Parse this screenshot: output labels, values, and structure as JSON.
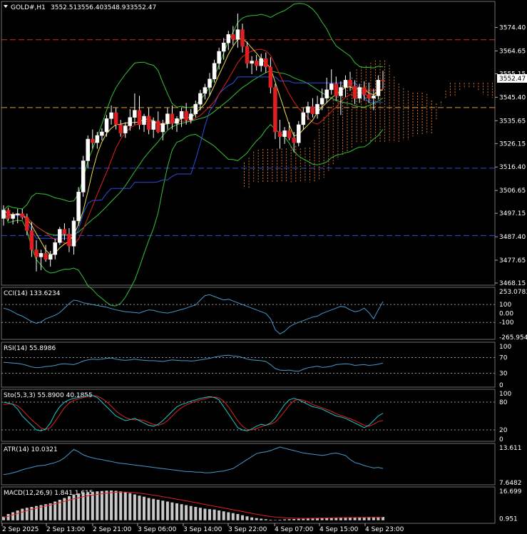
{
  "chart_data": {
    "type": "candlestick",
    "header": {
      "symbol": "GOLD#,H1",
      "open": "3552.51",
      "high": "3556.40",
      "low": "3548.93",
      "close": "3552.47"
    },
    "price_axis_ticks": [
      "3574.40",
      "3564.65",
      "3555.15",
      "3545.40",
      "3535.65",
      "3526.15",
      "3516.40",
      "3506.65",
      "3497.15",
      "3487.40",
      "3477.65",
      "3468.15"
    ],
    "price_range": [
      3468.15,
      3580.2
    ],
    "current_price_label": "3552.47",
    "x_tick_labels": [
      "2 Sep 2025",
      "2 Sep 13:00",
      "2 Sep 21:00",
      "3 Sep 06:00",
      "3 Sep 14:00",
      "3 Sep 22:00",
      "4 Sep 07:00",
      "4 Sep 15:00",
      "4 Sep 23:00"
    ],
    "horizontal_levels": [
      {
        "price": 3569.3,
        "color": "#dd2a2a"
      },
      {
        "price": 3541.1,
        "color": "#e0a030"
      },
      {
        "price": 3515.9,
        "color": "#2a4fe0"
      },
      {
        "price": 3487.9,
        "color": "#2a4fe0"
      }
    ],
    "candles": [
      [
        3495.0,
        3500.5,
        3492.0,
        3498.5
      ],
      [
        3498.5,
        3499.5,
        3494.0,
        3495.0
      ],
      [
        3495.0,
        3497.5,
        3492.5,
        3496.5
      ],
      [
        3496.5,
        3499.0,
        3493.0,
        3497.0
      ],
      [
        3497.0,
        3499.0,
        3494.5,
        3495.5
      ],
      [
        3495.5,
        3497.0,
        3488.0,
        3490.0
      ],
      [
        3490.0,
        3493.5,
        3479.0,
        3482.0
      ],
      [
        3482.0,
        3486.0,
        3473.0,
        3479.0
      ],
      [
        3479.0,
        3482.0,
        3473.5,
        3480.5
      ],
      [
        3480.5,
        3484.0,
        3477.0,
        3478.0
      ],
      [
        3478.0,
        3481.5,
        3475.0,
        3480.0
      ],
      [
        3480.0,
        3486.5,
        3478.0,
        3485.0
      ],
      [
        3485.0,
        3491.5,
        3484.0,
        3490.5
      ],
      [
        3490.5,
        3493.0,
        3486.0,
        3488.5
      ],
      [
        3488.5,
        3491.0,
        3481.0,
        3483.5
      ],
      [
        3483.5,
        3495.5,
        3480.0,
        3494.0
      ],
      [
        3494.0,
        3508.0,
        3492.0,
        3506.0
      ],
      [
        3506.0,
        3521.0,
        3504.0,
        3519.0
      ],
      [
        3519.0,
        3529.5,
        3516.0,
        3528.0
      ],
      [
        3528.0,
        3532.0,
        3524.0,
        3526.5
      ],
      [
        3526.5,
        3531.0,
        3524.0,
        3529.5
      ],
      [
        3529.5,
        3532.5,
        3527.5,
        3531.0
      ],
      [
        3531.0,
        3538.0,
        3529.0,
        3536.5
      ],
      [
        3536.5,
        3542.0,
        3534.0,
        3539.0
      ],
      [
        3539.0,
        3541.0,
        3532.0,
        3534.0
      ],
      [
        3534.0,
        3536.0,
        3529.0,
        3530.5
      ],
      [
        3530.5,
        3535.0,
        3528.5,
        3533.5
      ],
      [
        3533.5,
        3540.5,
        3531.5,
        3537.0
      ],
      [
        3537.0,
        3547.0,
        3534.0,
        3540.0
      ],
      [
        3540.0,
        3546.0,
        3532.0,
        3534.0
      ],
      [
        3534.0,
        3538.5,
        3531.0,
        3537.5
      ],
      [
        3537.5,
        3541.0,
        3530.0,
        3532.0
      ],
      [
        3532.0,
        3537.0,
        3528.5,
        3535.5
      ],
      [
        3535.5,
        3539.5,
        3530.5,
        3531.0
      ],
      [
        3531.0,
        3536.0,
        3527.5,
        3534.5
      ],
      [
        3534.5,
        3541.0,
        3532.0,
        3538.5
      ],
      [
        3538.5,
        3542.0,
        3532.0,
        3534.5
      ],
      [
        3534.5,
        3537.5,
        3531.0,
        3536.5
      ],
      [
        3536.5,
        3541.0,
        3533.0,
        3539.5
      ],
      [
        3539.5,
        3543.0,
        3534.0,
        3536.0
      ],
      [
        3536.0,
        3540.5,
        3534.5,
        3538.5
      ],
      [
        3538.5,
        3544.0,
        3537.0,
        3542.5
      ],
      [
        3542.5,
        3548.5,
        3540.0,
        3547.0
      ],
      [
        3547.0,
        3551.0,
        3544.5,
        3549.5
      ],
      [
        3549.5,
        3555.5,
        3546.0,
        3553.0
      ],
      [
        3553.0,
        3561.0,
        3551.5,
        3559.5
      ],
      [
        3559.5,
        3566.0,
        3557.0,
        3564.5
      ],
      [
        3564.5,
        3570.0,
        3561.0,
        3568.0
      ],
      [
        3568.0,
        3573.0,
        3565.0,
        3571.5
      ],
      [
        3571.5,
        3575.0,
        3567.0,
        3569.5
      ],
      [
        3569.5,
        3580.2,
        3566.0,
        3573.5
      ],
      [
        3573.5,
        3576.0,
        3564.0,
        3566.5
      ],
      [
        3566.5,
        3568.5,
        3557.5,
        3559.5
      ],
      [
        3559.5,
        3562.5,
        3555.0,
        3560.5
      ],
      [
        3560.5,
        3563.0,
        3556.5,
        3558.5
      ],
      [
        3558.5,
        3563.5,
        3556.0,
        3561.5
      ],
      [
        3561.5,
        3564.0,
        3555.5,
        3558.0
      ],
      [
        3558.0,
        3562.0,
        3547.0,
        3549.5
      ],
      [
        3549.5,
        3551.0,
        3528.0,
        3531.0
      ],
      [
        3531.0,
        3536.0,
        3524.0,
        3529.0
      ],
      [
        3529.0,
        3533.0,
        3526.0,
        3531.5
      ],
      [
        3531.5,
        3535.0,
        3527.5,
        3528.5
      ],
      [
        3528.5,
        3531.0,
        3522.5,
        3526.5
      ],
      [
        3526.5,
        3535.5,
        3525.0,
        3534.0
      ],
      [
        3534.0,
        3541.0,
        3532.0,
        3539.0
      ],
      [
        3539.0,
        3543.5,
        3536.0,
        3541.5
      ],
      [
        3541.5,
        3545.0,
        3537.0,
        3538.5
      ],
      [
        3538.5,
        3546.0,
        3536.5,
        3542.5
      ],
      [
        3542.5,
        3549.0,
        3540.0,
        3545.0
      ],
      [
        3545.0,
        3553.5,
        3543.0,
        3548.5
      ],
      [
        3548.5,
        3557.0,
        3546.5,
        3551.0
      ],
      [
        3551.0,
        3554.0,
        3544.0,
        3546.0
      ],
      [
        3546.0,
        3552.0,
        3538.0,
        3549.5
      ],
      [
        3549.5,
        3554.5,
        3545.5,
        3552.5
      ],
      [
        3552.5,
        3556.0,
        3548.0,
        3550.0
      ],
      [
        3550.0,
        3552.5,
        3542.5,
        3545.0
      ],
      [
        3545.0,
        3551.0,
        3543.0,
        3549.5
      ],
      [
        3549.5,
        3552.0,
        3544.0,
        3546.5
      ],
      [
        3546.5,
        3551.5,
        3543.0,
        3545.0
      ],
      [
        3545.0,
        3549.0,
        3540.0,
        3546.0
      ],
      [
        3546.0,
        3554.5,
        3544.5,
        3552.51
      ],
      [
        3552.51,
        3556.4,
        3548.93,
        3552.47
      ]
    ],
    "overlays": [
      {
        "name": "Ichimoku cloud",
        "fill": "#d8742a"
      },
      {
        "name": "Bollinger Bands",
        "color": "#36c236"
      },
      {
        "name": "Fast MA",
        "color": "#e8e04a"
      },
      {
        "name": "Slow MA",
        "color": "#e02020"
      },
      {
        "name": "Kijun",
        "color": "#2a4fe0"
      }
    ],
    "panels": [
      {
        "key": "cci",
        "label": "CCI(14) 133.6234",
        "color": "#4a98c8",
        "range": [
          -265.9542,
          253.0783
        ],
        "ticks": [
          "253.0783",
          "100",
          "0.00",
          "-100",
          "-265.9542"
        ],
        "levels": [
          100,
          -100
        ],
        "values": [
          60,
          45,
          20,
          -10,
          -30,
          -60,
          -90,
          -110,
          -95,
          -60,
          -40,
          -20,
          10,
          60,
          110,
          150,
          140,
          120,
          110,
          100,
          90,
          80,
          70,
          55,
          40,
          30,
          20,
          15,
          10,
          5,
          25,
          40,
          35,
          20,
          10,
          5,
          15,
          30,
          45,
          60,
          80,
          95,
          150,
          200,
          210,
          190,
          170,
          150,
          160,
          140,
          120,
          100,
          80,
          60,
          40,
          20,
          0,
          -60,
          -180,
          -230,
          -200,
          -150,
          -120,
          -100,
          -80,
          -60,
          -40,
          -30,
          0,
          20,
          40,
          60,
          80,
          70,
          40,
          20,
          30,
          60,
          10,
          -60,
          40,
          133.6234
        ]
      },
      {
        "key": "rsi",
        "label": "RSI(14) 55.8986",
        "color": "#4a98c8",
        "range": [
          0,
          100
        ],
        "ticks": [
          "100",
          "70",
          "30",
          "0"
        ],
        "levels": [
          70,
          30
        ],
        "values": [
          58,
          57,
          56,
          55,
          53,
          50,
          46,
          44,
          45,
          47,
          48,
          50,
          53,
          54,
          53,
          52,
          56,
          61,
          64,
          66,
          65,
          66,
          68,
          69,
          66,
          64,
          63,
          64,
          66,
          64,
          63,
          62,
          62,
          61,
          60,
          62,
          64,
          63,
          62,
          62,
          61,
          62,
          64,
          66,
          68,
          71,
          73,
          75,
          76,
          74,
          73,
          70,
          66,
          64,
          63,
          62,
          60,
          52,
          42,
          38,
          37,
          38,
          36,
          35,
          40,
          44,
          46,
          48,
          45,
          46,
          48,
          52,
          53,
          54,
          53,
          50,
          51,
          52,
          50,
          51,
          53,
          55.8986
        ]
      },
      {
        "key": "sto",
        "label": "Sto(5,3,3) 55.8900 40.1855",
        "colors": [
          "#20c8c8",
          "#e02020"
        ],
        "range": [
          0,
          100
        ],
        "ticks": [
          "100",
          "80",
          "20",
          "0"
        ],
        "levels": [
          80,
          20
        ],
        "values": [
          80,
          78,
          75,
          65,
          50,
          40,
          30,
          20,
          18,
          22,
          35,
          55,
          70,
          80,
          85,
          88,
          90,
          92,
          95,
          94,
          90,
          80,
          70,
          60,
          50,
          45,
          40,
          42,
          45,
          40,
          35,
          30,
          28,
          32,
          40,
          50,
          60,
          70,
          75,
          78,
          82,
          85,
          88,
          90,
          92,
          90,
          85,
          70,
          55,
          40,
          25,
          20,
          18,
          22,
          28,
          32,
          30,
          35,
          45,
          60,
          75,
          85,
          88,
          85,
          80,
          75,
          70,
          68,
          65,
          60,
          55,
          50,
          48,
          45,
          40,
          35,
          30,
          25,
          30,
          40,
          50,
          55.89
        ],
        "values2": [
          75,
          76,
          76,
          72,
          63,
          52,
          42,
          33,
          24,
          21,
          25,
          38,
          53,
          68,
          78,
          84,
          87,
          90,
          92,
          94,
          93,
          88,
          81,
          71,
          61,
          53,
          47,
          43,
          42,
          42,
          40,
          36,
          32,
          30,
          33,
          40,
          50,
          60,
          68,
          74,
          78,
          82,
          85,
          87,
          90,
          91,
          89,
          82,
          70,
          55,
          40,
          28,
          21,
          20,
          23,
          27,
          30,
          32,
          37,
          47,
          60,
          73,
          83,
          86,
          84,
          80,
          75,
          71,
          68,
          64,
          60,
          55,
          51,
          48,
          44,
          40,
          35,
          30,
          28,
          32,
          38,
          40.1855
        ]
      },
      {
        "key": "atr",
        "label": "ATR(14) 10.0321",
        "color": "#4a98c8",
        "range": [
          7.6482,
          13.6
        ],
        "ticks": [
          "13.611",
          "7.6482"
        ],
        "levels": [],
        "values": [
          9.0,
          9.1,
          9.3,
          9.5,
          9.8,
          10.0,
          10.2,
          10.4,
          10.5,
          10.6,
          10.8,
          11.0,
          11.3,
          11.8,
          12.5,
          13.2,
          12.8,
          12.3,
          12.0,
          11.8,
          11.6,
          11.5,
          11.3,
          11.2,
          11.0,
          10.9,
          10.8,
          10.7,
          10.6,
          10.5,
          10.4,
          10.3,
          10.2,
          10.1,
          10.0,
          9.9,
          9.8,
          9.7,
          9.6,
          9.5,
          9.5,
          9.4,
          9.4,
          9.3,
          9.3,
          9.4,
          9.5,
          9.6,
          9.8,
          10.0,
          10.5,
          11.0,
          11.5,
          12.0,
          12.5,
          12.7,
          12.8,
          13.0,
          13.3,
          13.6,
          13.4,
          13.2,
          13.0,
          12.8,
          12.6,
          12.5,
          12.4,
          12.3,
          12.2,
          12.3,
          12.5,
          12.6,
          12.4,
          12.2,
          11.5,
          11.0,
          10.8,
          10.5,
          10.3,
          10.1,
          10.2,
          10.0321
        ]
      },
      {
        "key": "macd",
        "label": "MACD(12,26,9) 1.841 1.615",
        "histColor": "#c8c8c8",
        "signalColor": "#e02020",
        "range": [
          -0.5,
          16.699
        ],
        "ticks": [
          "16.699",
          "0.951"
        ],
        "levels": [],
        "hist": [
          2.0,
          3.5,
          4.5,
          5.5,
          6.5,
          7.0,
          7.5,
          8.0,
          8.5,
          9.0,
          9.5,
          10.5,
          11.5,
          12.5,
          13.5,
          14.5,
          15.0,
          15.5,
          15.8,
          16.0,
          16.2,
          16.4,
          16.6,
          16.699,
          16.5,
          16.2,
          15.8,
          15.2,
          14.5,
          13.8,
          13.2,
          12.5,
          12.0,
          11.5,
          11.0,
          10.5,
          10.0,
          9.5,
          9.0,
          8.5,
          8.0,
          7.5,
          7.0,
          6.5,
          6.2,
          6.0,
          5.5,
          5.0,
          4.5,
          4.0,
          3.5,
          2.8,
          2.2,
          1.6,
          1.2,
          0.9,
          0.6,
          0.3,
          0.2,
          0.3,
          0.5,
          0.6,
          0.7,
          0.8,
          0.8,
          0.9,
          1.0,
          1.1,
          1.2,
          1.2,
          1.3,
          1.4,
          1.5,
          1.5,
          1.6,
          1.6,
          1.7,
          1.7,
          1.8,
          1.8,
          1.84,
          1.841
        ],
        "signal": [
          1.5,
          2.2,
          3.0,
          3.8,
          4.6,
          5.4,
          6.1,
          6.8,
          7.4,
          8.0,
          8.6,
          9.2,
          9.9,
          10.6,
          11.3,
          12.0,
          12.6,
          13.2,
          13.7,
          14.1,
          14.5,
          14.9,
          15.2,
          15.5,
          15.7,
          15.8,
          15.8,
          15.7,
          15.5,
          15.2,
          14.9,
          14.5,
          14.1,
          13.7,
          13.2,
          12.8,
          12.3,
          11.8,
          11.4,
          10.9,
          10.4,
          9.9,
          9.4,
          8.9,
          8.4,
          7.9,
          7.4,
          6.9,
          6.4,
          5.9,
          5.4,
          4.9,
          4.4,
          3.9,
          3.4,
          2.9,
          2.5,
          2.1,
          1.8,
          1.6,
          1.4,
          1.3,
          1.2,
          1.1,
          1.1,
          1.1,
          1.15,
          1.2,
          1.25,
          1.3,
          1.35,
          1.4,
          1.45,
          1.5,
          1.52,
          1.54,
          1.56,
          1.58,
          1.6,
          1.61,
          1.612,
          1.615
        ]
      }
    ]
  }
}
